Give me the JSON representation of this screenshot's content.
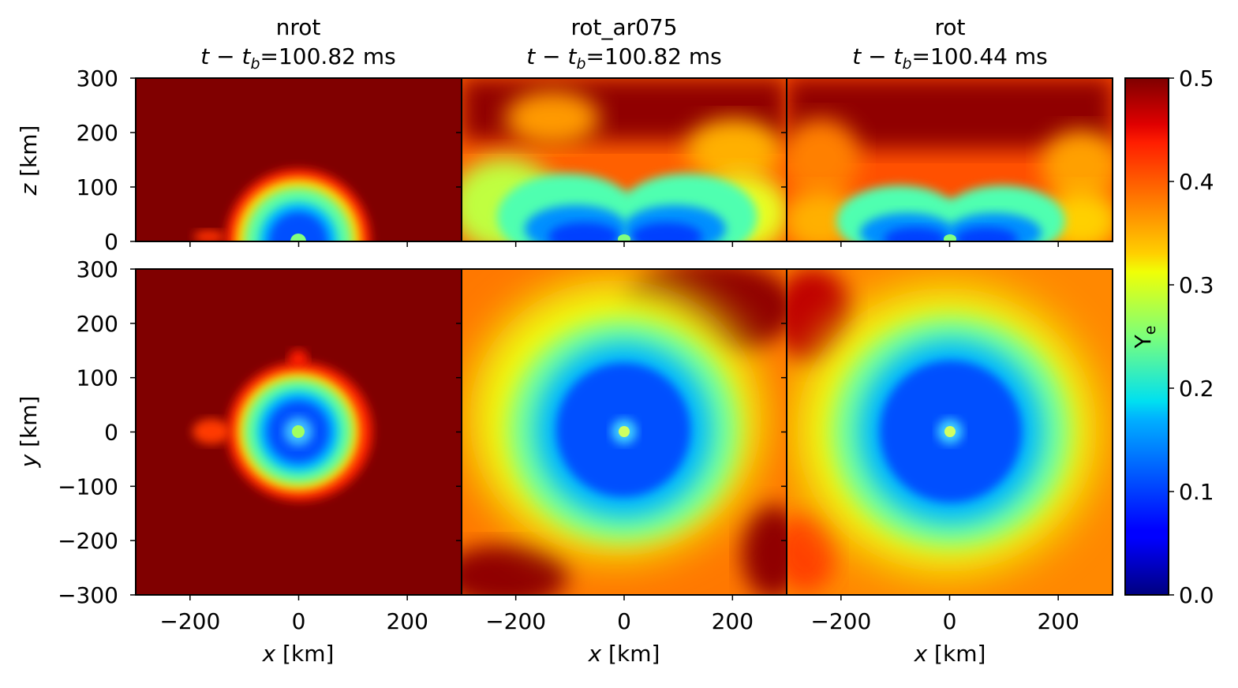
{
  "chart_data": {
    "type": "heatmap",
    "colormap": "jet",
    "colorbar": {
      "label": "Y",
      "label_sub": "e",
      "range": [
        0.0,
        0.5
      ],
      "ticks": [
        "0.0",
        "0.1",
        "0.2",
        "0.3",
        "0.4",
        "0.5"
      ]
    },
    "columns": [
      {
        "key": "nrot",
        "title": "nrot",
        "time_lhs": "t − t",
        "time_sub": "b",
        "time_value": "=100.82 ms",
        "shock_radius_km": 125,
        "rotating": false
      },
      {
        "key": "rot_ar075",
        "title": "rot_ar075",
        "time_lhs": "t − t",
        "time_sub": "b",
        "time_value": "=100.82 ms",
        "rotating": true
      },
      {
        "key": "rot",
        "title": "rot",
        "time_lhs": "t − t",
        "time_sub": "b",
        "time_value": "=100.44 ms",
        "rotating": true
      }
    ],
    "rows": [
      {
        "plane": "x-z",
        "ylabel_var": "z",
        "ylabel_unit": " [km]",
        "ylim": [
          0,
          300
        ],
        "yticks": [
          "0",
          "100",
          "200",
          "300"
        ]
      },
      {
        "plane": "x-y",
        "ylabel_var": "y",
        "ylabel_unit": " [km]",
        "ylim": [
          -300,
          300
        ],
        "yticks": [
          "−300",
          "−200",
          "−100",
          "0",
          "100",
          "200",
          "300"
        ]
      }
    ],
    "xaxis": {
      "var": "x",
      "unit": " [km]",
      "xlim": [
        -300,
        300
      ],
      "ticks": [
        "−200",
        "0",
        "200"
      ]
    }
  }
}
